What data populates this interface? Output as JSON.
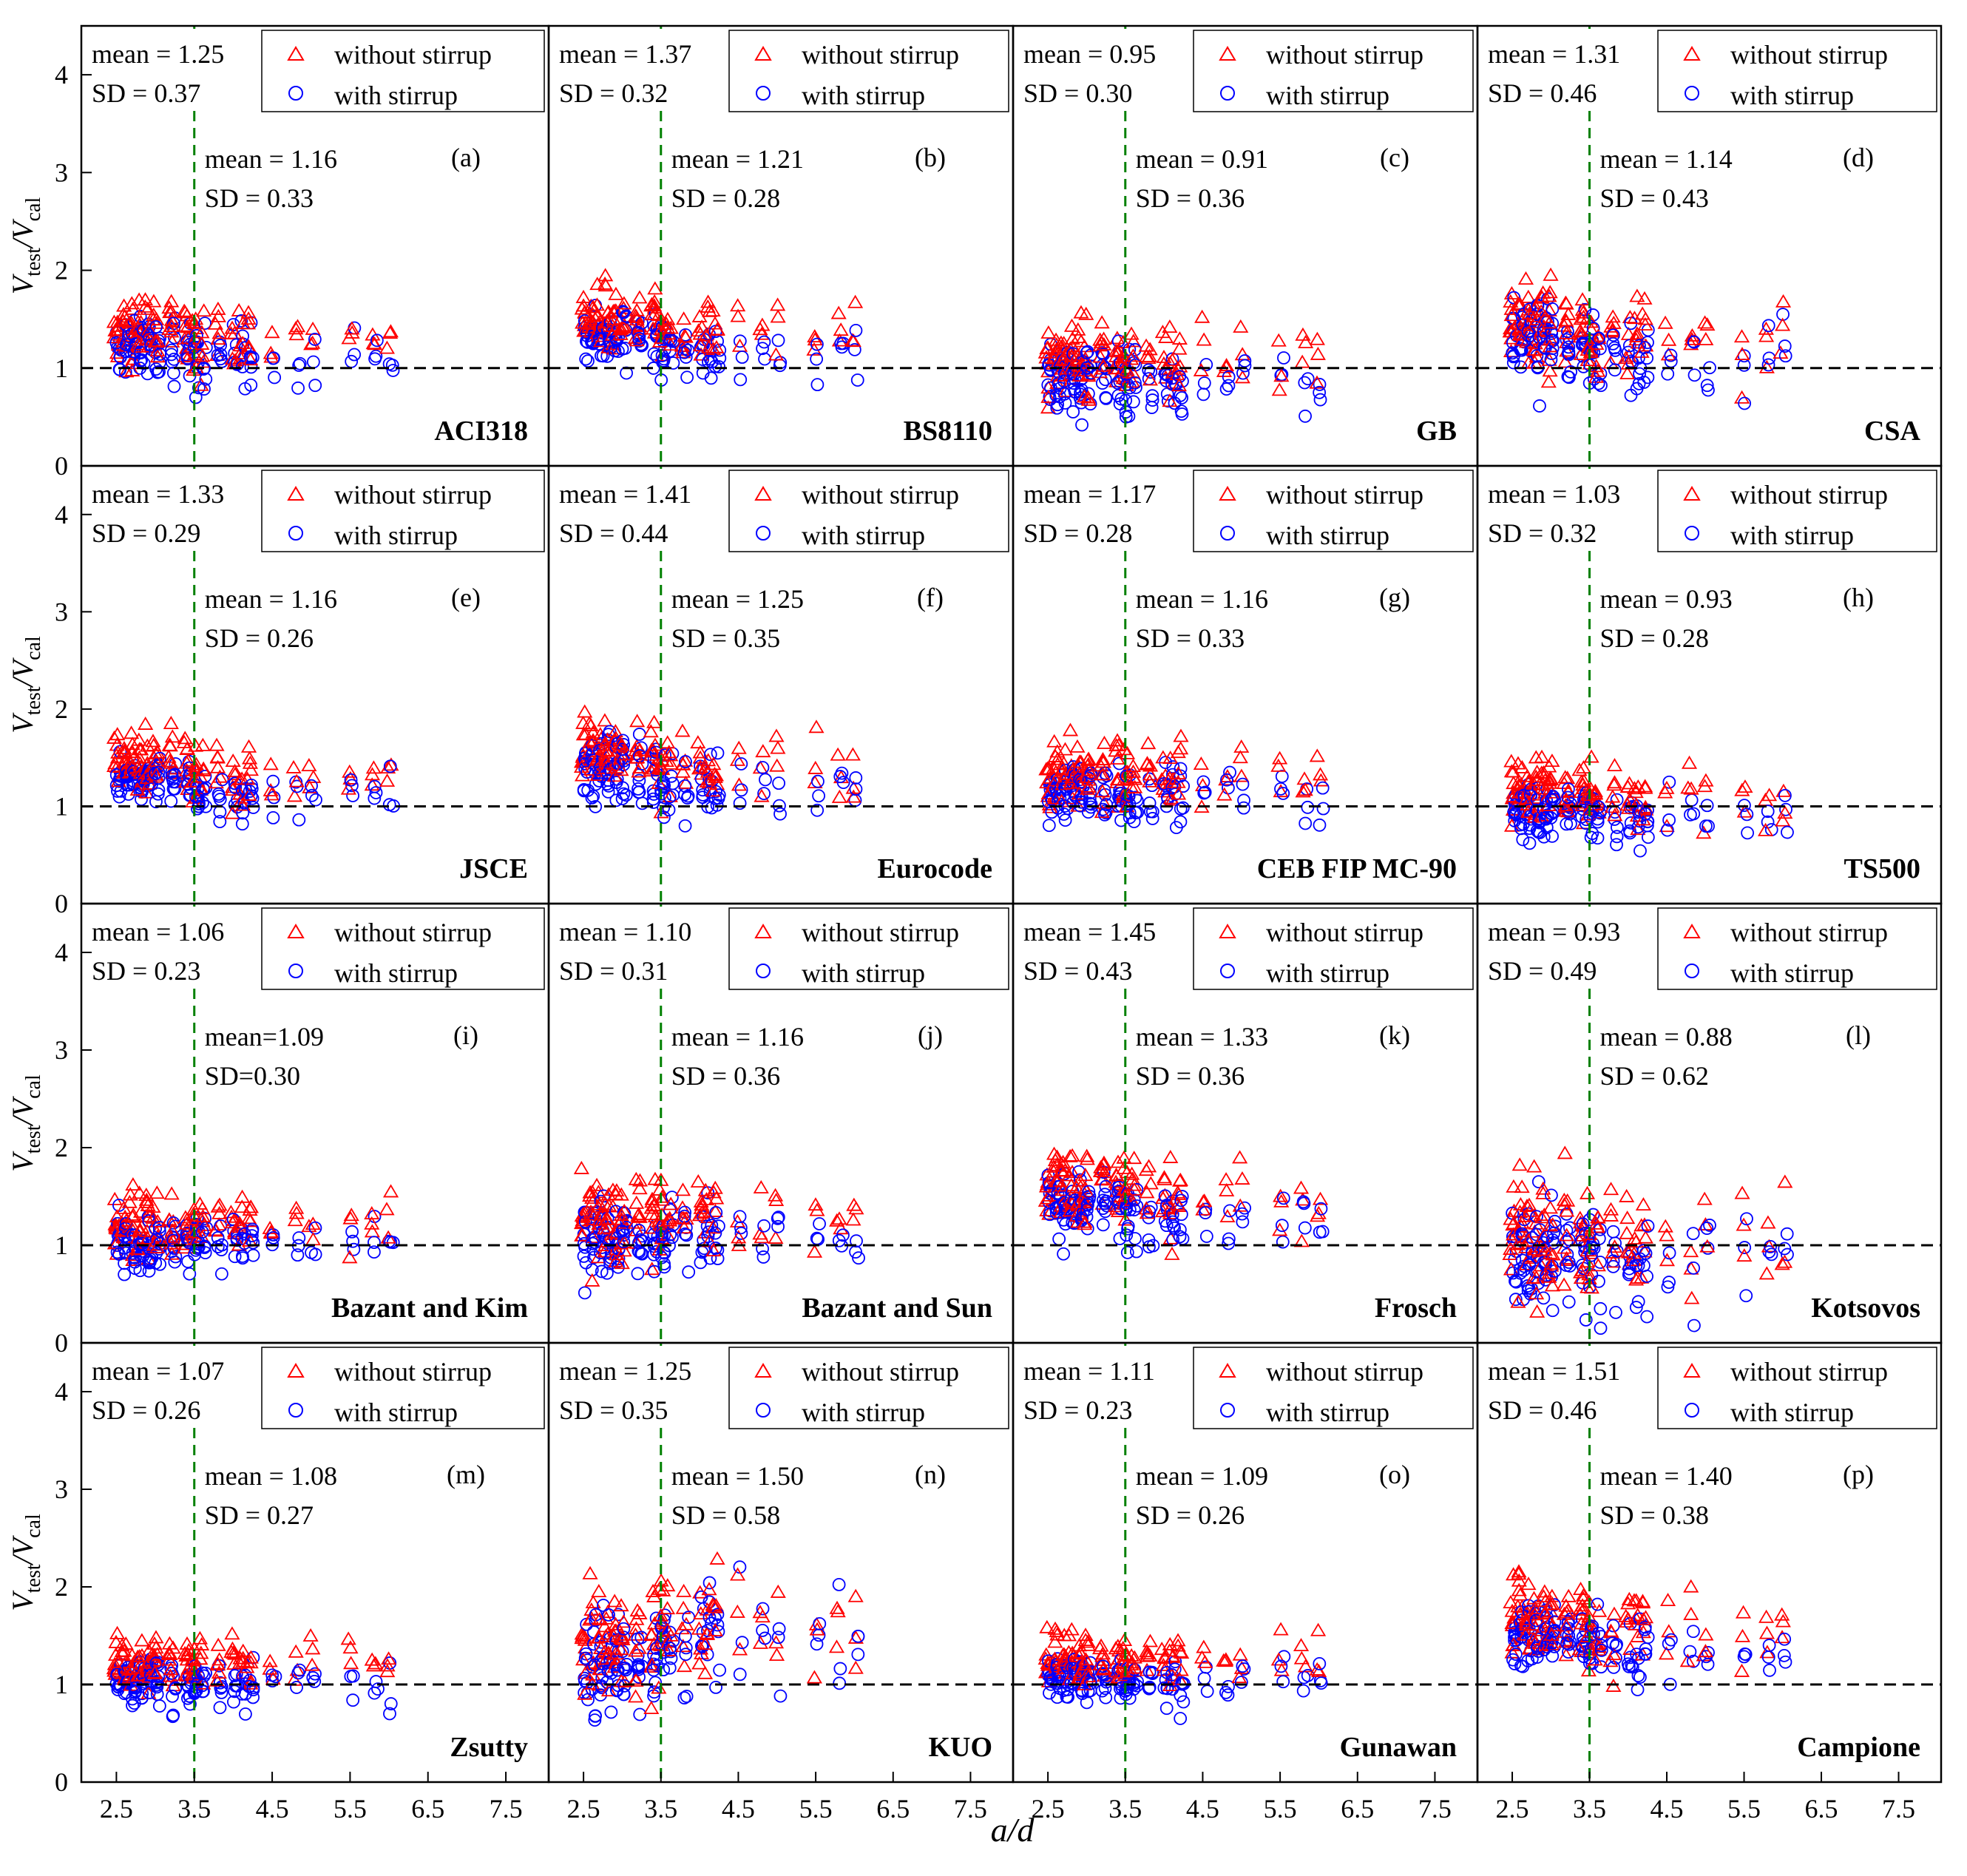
{
  "figure": {
    "xlabel": "a/d",
    "ylabel_main": "V",
    "ylabel_num_sub": "test",
    "ylabel_den": "/V",
    "ylabel_den_sub": "cal",
    "legend": [
      "without stirrup",
      "with stirrup"
    ],
    "colors": {
      "without_stirrup": "#ff0000",
      "with_stirrup": "#0000ff",
      "reference_line": "#000000",
      "divider_line": "#008000"
    }
  },
  "chart_data": {
    "type": "scatter",
    "layout": "4x4 grid of panels sharing axes",
    "x_axis": {
      "label": "a/d",
      "ticks": [
        "2.5",
        "3.5",
        "4.5",
        "5.5",
        "6.5",
        "7.5"
      ],
      "range": [
        2.05,
        8.05
      ]
    },
    "y_axis": {
      "ticks": [
        "0",
        "1",
        "2",
        "3",
        "4"
      ],
      "range": [
        0,
        4.5
      ]
    },
    "reference_line_y": 1,
    "divider_line_x": 3.5,
    "series": [
      {
        "name": "without stirrup",
        "marker": "triangle",
        "color": "#ff0000"
      },
      {
        "name": "with stirrup",
        "marker": "circle",
        "color": "#0000ff"
      }
    ],
    "panels": [
      {
        "letter": "(a)",
        "code": "ACI318",
        "left": {
          "mean": "mean = 1.25",
          "sd": "SD = 0.37"
        },
        "right": {
          "mean": "mean = 1.16",
          "sd": "SD = 0.33"
        }
      },
      {
        "letter": "(b)",
        "code": "BS8110",
        "left": {
          "mean": "mean = 1.37",
          "sd": "SD = 0.32"
        },
        "right": {
          "mean": "mean = 1.21",
          "sd": "SD = 0.28"
        }
      },
      {
        "letter": "(c)",
        "code": "GB",
        "left": {
          "mean": "mean = 0.95",
          "sd": "SD = 0.30"
        },
        "right": {
          "mean": "mean = 0.91",
          "sd": "SD = 0.36"
        }
      },
      {
        "letter": "(d)",
        "code": "CSA",
        "left": {
          "mean": "mean = 1.31",
          "sd": "SD = 0.46"
        },
        "right": {
          "mean": "mean = 1.14",
          "sd": "SD = 0.43"
        }
      },
      {
        "letter": "(e)",
        "code": "JSCE",
        "left": {
          "mean": "mean = 1.33",
          "sd": "SD = 0.29"
        },
        "right": {
          "mean": "mean = 1.16",
          "sd": "SD = 0.26"
        }
      },
      {
        "letter": "(f)",
        "code": "Eurocode",
        "left": {
          "mean": "mean = 1.41",
          "sd": "SD = 0.44"
        },
        "right": {
          "mean": "mean = 1.25",
          "sd": "SD = 0.35"
        }
      },
      {
        "letter": "(g)",
        "code": "CEB FIP MC-90",
        "left": {
          "mean": "mean = 1.17",
          "sd": "SD = 0.28"
        },
        "right": {
          "mean": "mean = 1.16",
          "sd": "SD = 0.33"
        }
      },
      {
        "letter": "(h)",
        "code": "TS500",
        "left": {
          "mean": "mean = 1.03",
          "sd": "SD = 0.32"
        },
        "right": {
          "mean": "mean = 0.93",
          "sd": "SD = 0.28"
        }
      },
      {
        "letter": "(i)",
        "code": "Bazant and Kim",
        "left": {
          "mean": "mean = 1.06",
          "sd": "SD = 0.23"
        },
        "right": {
          "mean": "mean=1.09",
          "sd": "SD=0.30"
        }
      },
      {
        "letter": "(j)",
        "code": "Bazant and Sun",
        "left": {
          "mean": "mean = 1.10",
          "sd": "SD = 0.31"
        },
        "right": {
          "mean": "mean = 1.16",
          "sd": "SD = 0.36"
        }
      },
      {
        "letter": "(k)",
        "code": "Frosch",
        "left": {
          "mean": "mean = 1.45",
          "sd": "SD = 0.43"
        },
        "right": {
          "mean": "mean = 1.33",
          "sd": "SD = 0.36"
        }
      },
      {
        "letter": "(l)",
        "code": "Kotsovos",
        "left": {
          "mean": "mean = 0.93",
          "sd": "SD = 0.49"
        },
        "right": {
          "mean": "mean = 0.88",
          "sd": "SD = 0.62"
        }
      },
      {
        "letter": "(m)",
        "code": "Zsutty",
        "left": {
          "mean": "mean = 1.07",
          "sd": "SD = 0.26"
        },
        "right": {
          "mean": "mean = 1.08",
          "sd": "SD = 0.27"
        }
      },
      {
        "letter": "(n)",
        "code": "KUO",
        "left": {
          "mean": "mean = 1.25",
          "sd": "SD = 0.35"
        },
        "right": {
          "mean": "mean = 1.50",
          "sd": "SD = 0.58"
        }
      },
      {
        "letter": "(o)",
        "code": "Gunawan",
        "left": {
          "mean": "mean = 1.11",
          "sd": "SD = 0.23"
        },
        "right": {
          "mean": "mean = 1.09",
          "sd": "SD = 0.26"
        }
      },
      {
        "letter": "(p)",
        "code": "Campione",
        "left": {
          "mean": "mean = 1.51",
          "sd": "SD = 0.46"
        },
        "right": {
          "mean": "mean = 1.40",
          "sd": "SD = 0.38"
        }
      }
    ]
  }
}
